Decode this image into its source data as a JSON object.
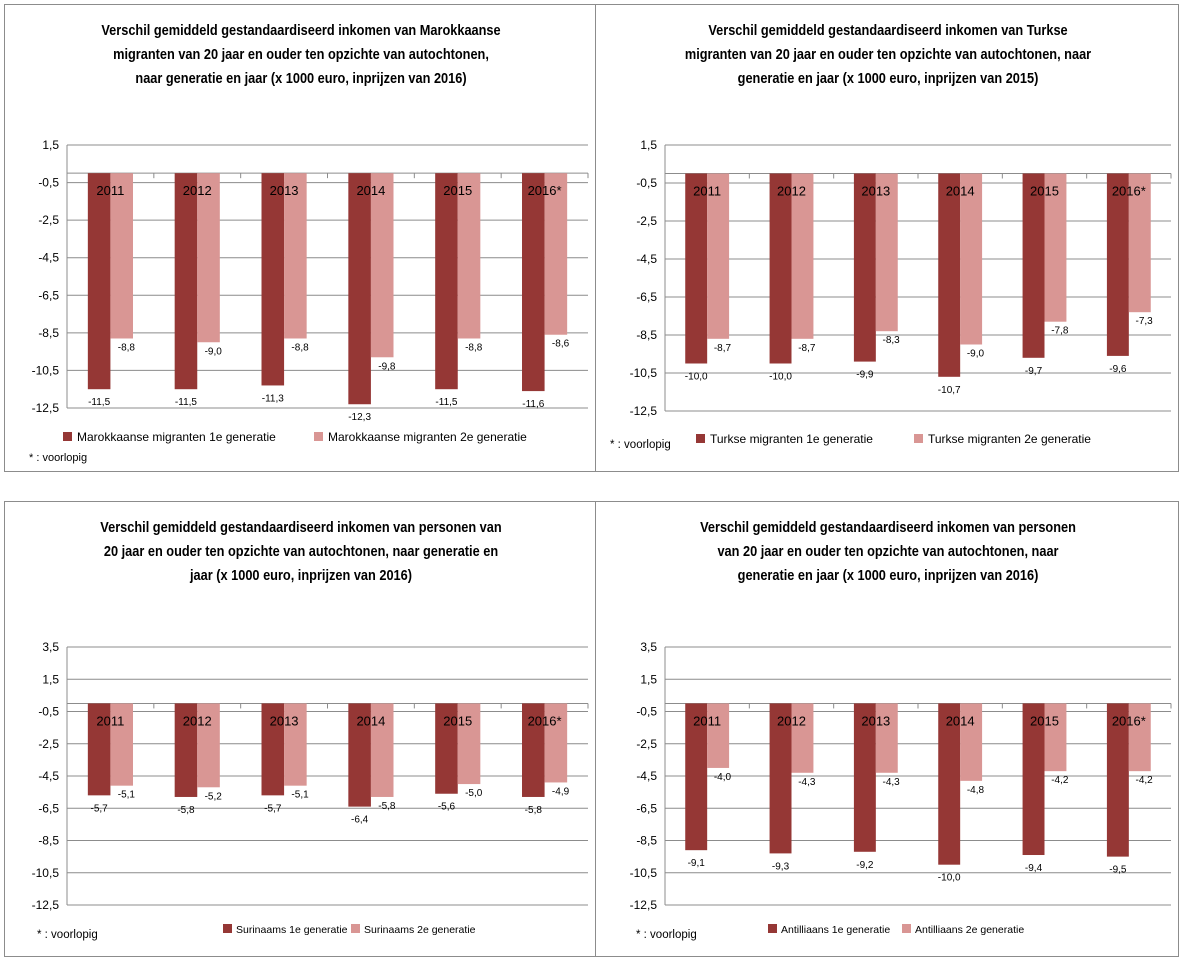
{
  "colors": {
    "first_gen": "#953735",
    "second_gen": "#D99694",
    "grid": "#8c8c8c"
  },
  "chart_data": [
    {
      "type": "bar",
      "title": "Verschil  gemiddeld gestandaardiseerd inkomen van Marokkaanse migranten van 20 jaar en ouder ten opzichte van autochtonen, naar generatie en jaar (x 1000 euro, inprijzen van 2016)",
      "title_lines": [
        "Verschil  gemiddeld gestandaardiseerd inkomen van Marokkaanse",
        "migranten van 20 jaar en ouder ten opzichte van autochtonen,",
        "naar generatie en jaar (x 1000 euro, inprijzen van 2016)"
      ],
      "categories": [
        "2011",
        "2012",
        "2013",
        "2014",
        "2015",
        "2016*"
      ],
      "series": [
        {
          "name": "Marokkaanse migranten 1e generatie",
          "values": [
            -11.5,
            -11.5,
            -11.3,
            -12.3,
            -11.5,
            -11.6
          ]
        },
        {
          "name": "Marokkaanse migranten 2e generatie",
          "values": [
            -8.8,
            -9.0,
            -8.8,
            -9.8,
            -8.8,
            -8.6
          ]
        }
      ],
      "data_labels": [
        [
          "-11,5",
          "-11,5",
          "-11,3",
          "-12,3",
          "-11,5",
          "-11,6"
        ],
        [
          "-8,8",
          "-9,0",
          "-8,8",
          "-9,8",
          "-8,8",
          "-8,6"
        ]
      ],
      "y_ticks": [
        "1,5",
        "-0,5",
        "-2,5",
        "-4,5",
        "-6,5",
        "-8,5",
        "-10,5",
        "-12,5"
      ],
      "ylim": [
        -12.5,
        1.5
      ],
      "note": "* : voorlopig",
      "legend_position": "bottom-left"
    },
    {
      "type": "bar",
      "title": "Verschil  gemiddeld gestandaardiseerd inkomen van Turkse migranten van 20 jaar en ouder ten opzichte van autochtonen, naar generatie en jaar (x 1000 euro, inprijzen van 2015)",
      "title_lines": [
        "Verschil  gemiddeld gestandaardiseerd inkomen van Turkse",
        "migranten van 20 jaar en ouder ten opzichte van autochtonen, naar",
        "generatie en jaar (x 1000 euro, inprijzen van 2015)"
      ],
      "categories": [
        "2011",
        "2012",
        "2013",
        "2014",
        "2015",
        "2016*"
      ],
      "series": [
        {
          "name": "Turkse migranten 1e generatie",
          "values": [
            -10.0,
            -10.0,
            -9.9,
            -10.7,
            -9.7,
            -9.6
          ]
        },
        {
          "name": "Turkse migranten 2e generatie",
          "values": [
            -8.7,
            -8.7,
            -8.3,
            -9.0,
            -7.8,
            -7.3
          ]
        }
      ],
      "data_labels": [
        [
          "-10,0",
          "-10,0",
          "-9,9",
          "-10,7",
          "-9,7",
          "-9,6"
        ],
        [
          "-8,7",
          "-8,7",
          "-8,3",
          "-9,0",
          "-7,8",
          "-7,3"
        ]
      ],
      "y_ticks": [
        "1,5",
        "-0,5",
        "-2,5",
        "-4,5",
        "-6,5",
        "-8,5",
        "-10,5",
        "-12,5"
      ],
      "ylim": [
        -12.5,
        1.5
      ],
      "note": "* : voorlopig",
      "legend_position": "bottom"
    },
    {
      "type": "bar",
      "title": "Verschil  gemiddeld gestandaardiseerd inkomen van personen van 20 jaar en ouder ten opzichte van autochtonen, naar generatie en jaar (x 1000 euro, inprijzen van 2016)",
      "title_lines": [
        "Verschil  gemiddeld gestandaardiseerd inkomen van personen van",
        "20 jaar en ouder ten opzichte van autochtonen, naar generatie en",
        "jaar (x 1000 euro, inprijzen van 2016)"
      ],
      "categories": [
        "2011",
        "2012",
        "2013",
        "2014",
        "2015",
        "2016*"
      ],
      "series": [
        {
          "name": "Surinaams 1e generatie",
          "values": [
            -5.7,
            -5.8,
            -5.7,
            -6.4,
            -5.6,
            -5.8
          ]
        },
        {
          "name": "Surinaams 2e generatie",
          "values": [
            -5.1,
            -5.2,
            -5.1,
            -5.8,
            -5.0,
            -4.9
          ]
        }
      ],
      "data_labels": [
        [
          "-5,7",
          "-5,8",
          "-5,7",
          "-6,4",
          "-5,6",
          "-5,8"
        ],
        [
          "-5,1",
          "-5,2",
          "-5,1",
          "-5,8",
          "-5,0",
          "-4,9"
        ]
      ],
      "y_ticks": [
        "3,5",
        "1,5",
        "-0,5",
        "-2,5",
        "-4,5",
        "-6,5",
        "-8,5",
        "-10,5",
        "-12,5"
      ],
      "ylim": [
        -12.5,
        3.5
      ],
      "note": "* : voorlopig",
      "legend_position": "bottom"
    },
    {
      "type": "bar",
      "title": "Verschil  gemiddeld gestandaardiseerd inkomen van personen van 20 jaar en ouder ten opzichte van autochtonen, naar generatie en jaar (x 1000 euro, inprijzen van 2016)",
      "title_lines": [
        "Verschil  gemiddeld gestandaardiseerd inkomen van personen",
        "van 20 jaar en ouder ten opzichte van autochtonen, naar",
        "generatie en jaar (x 1000 euro, inprijzen van 2016)"
      ],
      "categories": [
        "2011",
        "2012",
        "2013",
        "2014",
        "2015",
        "2016*"
      ],
      "series": [
        {
          "name": "Antilliaans 1e generatie",
          "values": [
            -9.1,
            -9.3,
            -9.2,
            -10.0,
            -9.4,
            -9.5
          ]
        },
        {
          "name": "Antilliaans 2e generatie",
          "values": [
            -4.0,
            -4.3,
            -4.3,
            -4.8,
            -4.2,
            -4.2
          ]
        }
      ],
      "data_labels": [
        [
          "-9,1",
          "-9,3",
          "-9,2",
          "-10,0",
          "-9,4",
          "-9,5"
        ],
        [
          "-4,0",
          "-4,3",
          "-4,3",
          "-4,8",
          "-4,2",
          "-4,2"
        ]
      ],
      "y_ticks": [
        "3,5",
        "1,5",
        "-0,5",
        "-2,5",
        "-4,5",
        "-6,5",
        "-8,5",
        "-10,5",
        "-12,5"
      ],
      "ylim": [
        -12.5,
        3.5
      ],
      "note": "* : voorlopig",
      "legend_position": "bottom"
    }
  ]
}
